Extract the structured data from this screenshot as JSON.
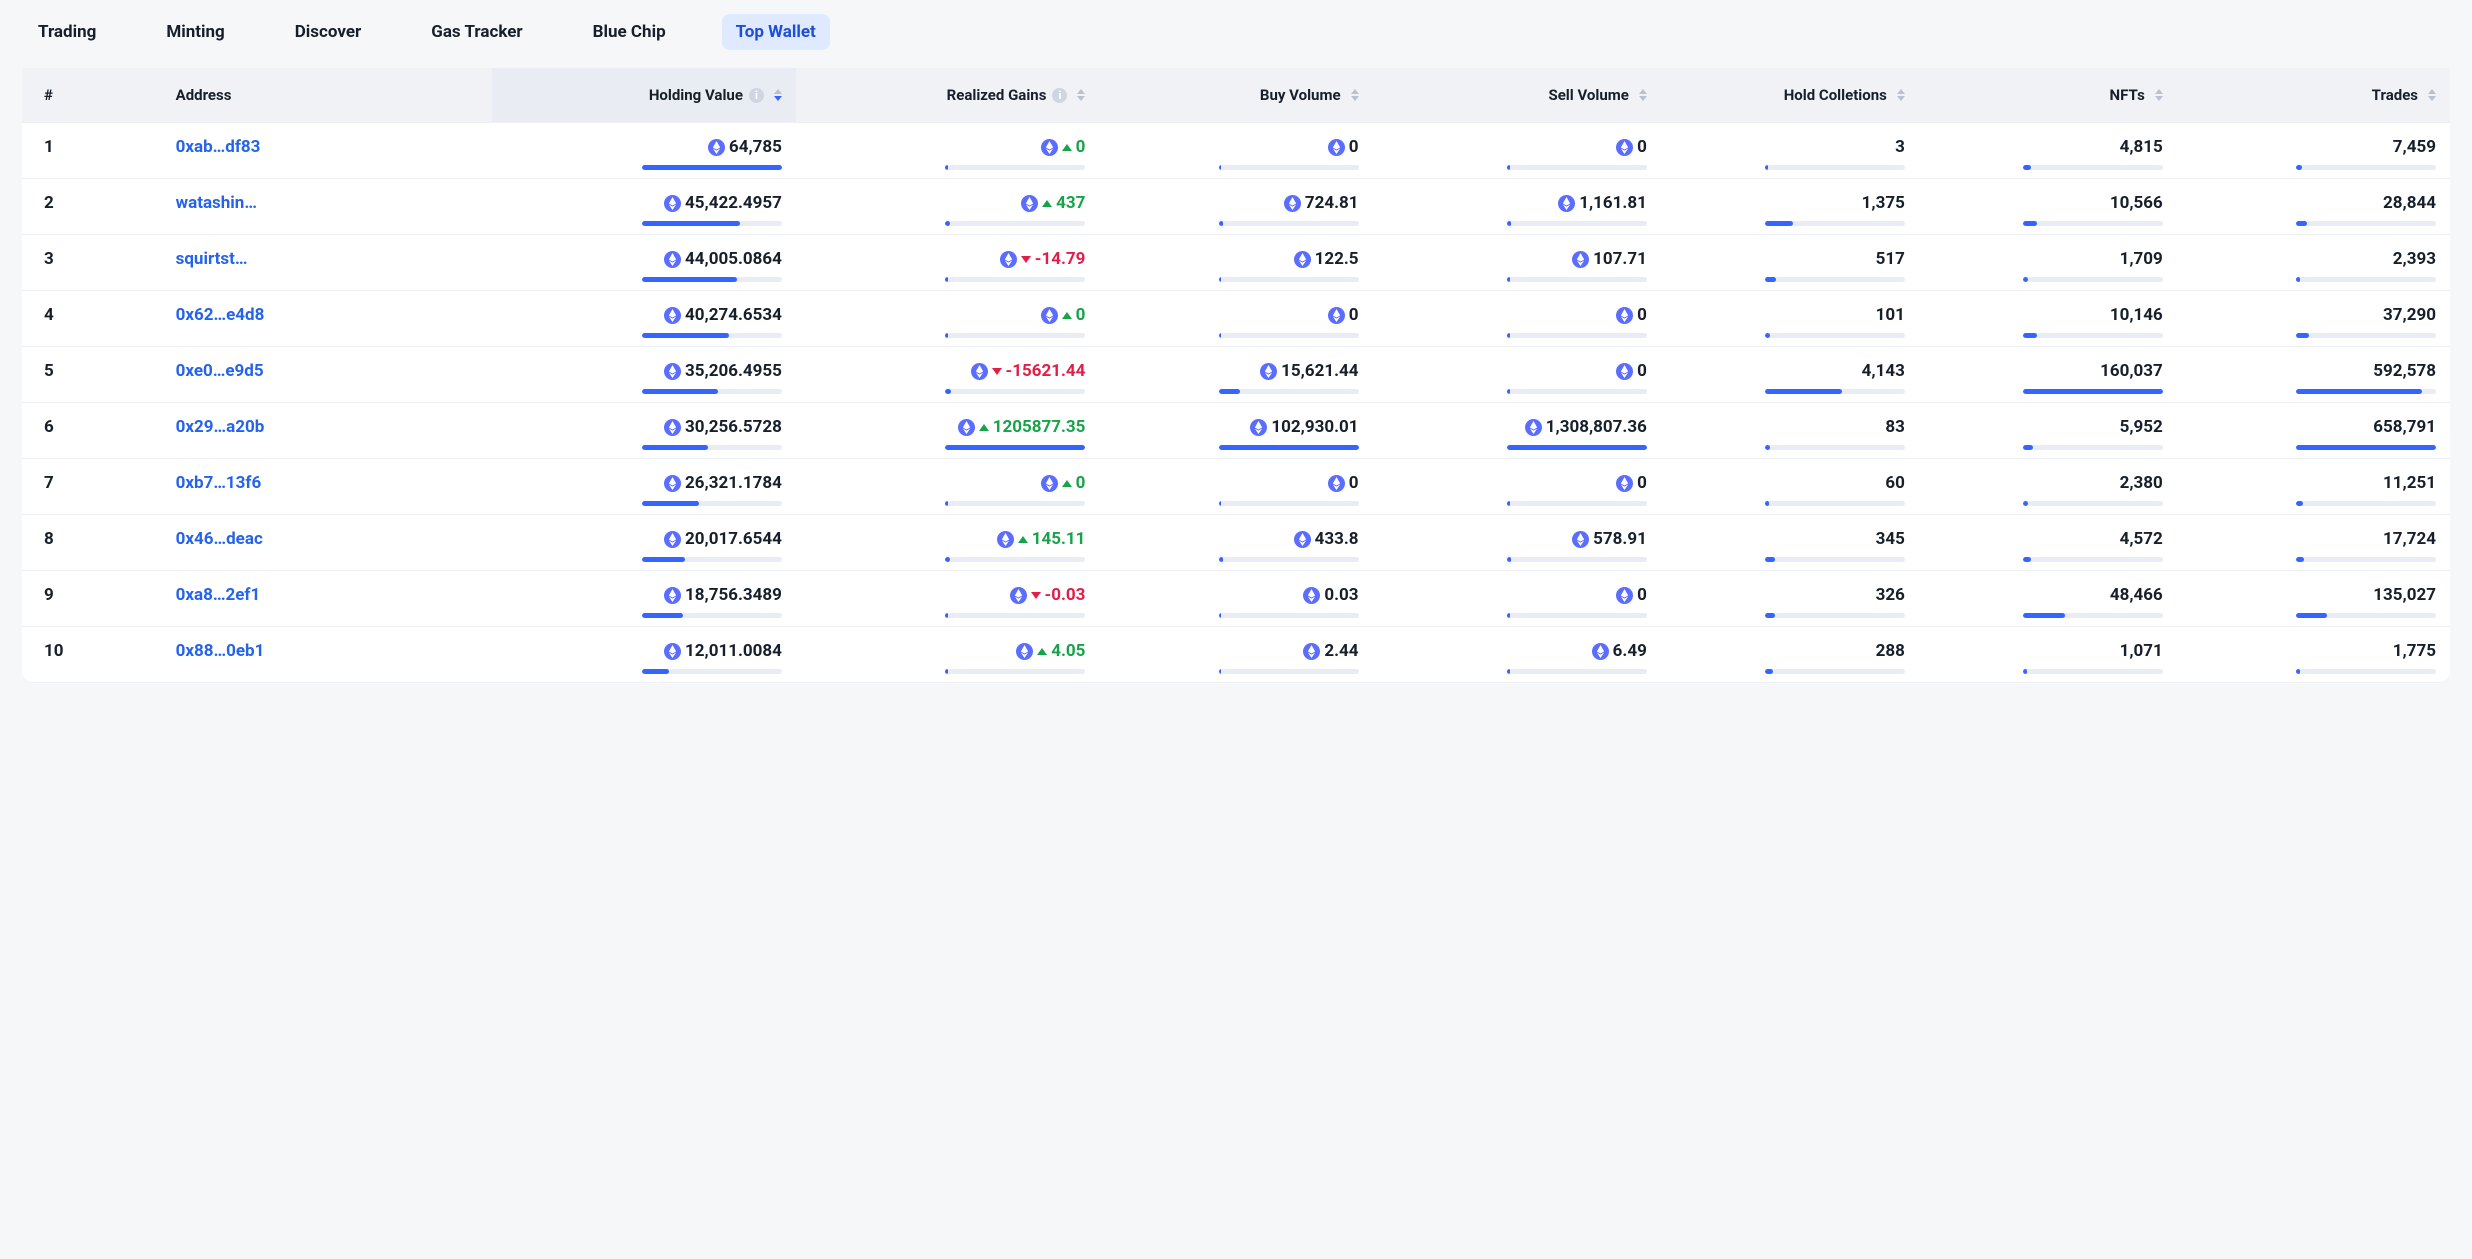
{
  "tabs": [
    {
      "label": "Trading",
      "active": false
    },
    {
      "label": "Minting",
      "active": false
    },
    {
      "label": "Discover",
      "active": false
    },
    {
      "label": "Gas Tracker",
      "active": false
    },
    {
      "label": "Blue Chip",
      "active": false
    },
    {
      "label": "Top Wallet",
      "active": true
    }
  ],
  "columns": [
    {
      "key": "rank",
      "label": "#",
      "align": "left",
      "sortable": false,
      "info": false,
      "eth": false,
      "active_sort": false
    },
    {
      "key": "address",
      "label": "Address",
      "align": "left",
      "sortable": false,
      "info": false,
      "eth": false,
      "active_sort": false
    },
    {
      "key": "holding_value",
      "label": "Holding Value",
      "align": "right",
      "sortable": true,
      "info": true,
      "eth": false,
      "active_sort": true
    },
    {
      "key": "realized_gains",
      "label": "Realized Gains",
      "align": "right",
      "sortable": true,
      "info": true,
      "eth": false,
      "active_sort": false
    },
    {
      "key": "buy_volume",
      "label": "Buy Volume",
      "align": "right",
      "sortable": true,
      "info": false,
      "eth": false,
      "active_sort": false
    },
    {
      "key": "sell_volume",
      "label": "Sell Volume",
      "align": "right",
      "sortable": true,
      "info": false,
      "eth": false,
      "active_sort": false
    },
    {
      "key": "hold_collections",
      "label": "Hold Colletions",
      "align": "right",
      "sortable": true,
      "info": false,
      "eth": false,
      "active_sort": false
    },
    {
      "key": "nfts",
      "label": "NFTs",
      "align": "right",
      "sortable": true,
      "info": false,
      "eth": false,
      "active_sort": false
    },
    {
      "key": "trades",
      "label": "Trades",
      "align": "right",
      "sortable": true,
      "info": false,
      "eth": false,
      "active_sort": false
    }
  ],
  "bar_color": "#3565ff",
  "bar_bg": "#e9ecf2",
  "eth_icon_color": "#5b6dff",
  "rows": [
    {
      "rank": "1",
      "address": "0xab…df83",
      "holding_value": "64,785",
      "hv_pct": 100,
      "gain": "0",
      "gain_dir": "up",
      "gain_pct": 2,
      "buy": "0",
      "buy_pct": 2,
      "sell": "0",
      "sell_pct": 2,
      "coll": "3",
      "coll_pct": 2,
      "nfts": "4,815",
      "nfts_pct": 6,
      "trades": "7,459",
      "trades_pct": 4
    },
    {
      "rank": "2",
      "address": "watashin…",
      "holding_value": "45,422.4957",
      "hv_pct": 70,
      "gain": "437",
      "gain_dir": "up",
      "gain_pct": 3,
      "buy": "724.81",
      "buy_pct": 3,
      "sell": "1,161.81",
      "sell_pct": 3,
      "coll": "1,375",
      "coll_pct": 20,
      "nfts": "10,566",
      "nfts_pct": 10,
      "trades": "28,844",
      "trades_pct": 8
    },
    {
      "rank": "3",
      "address": "squirtst…",
      "holding_value": "44,005.0864",
      "hv_pct": 68,
      "gain": "-14.79",
      "gain_dir": "down",
      "gain_pct": 2,
      "buy": "122.5",
      "buy_pct": 2,
      "sell": "107.71",
      "sell_pct": 2,
      "coll": "517",
      "coll_pct": 8,
      "nfts": "1,709",
      "nfts_pct": 4,
      "trades": "2,393",
      "trades_pct": 3
    },
    {
      "rank": "4",
      "address": "0x62…e4d8",
      "holding_value": "40,274.6534",
      "hv_pct": 62,
      "gain": "0",
      "gain_dir": "up",
      "gain_pct": 2,
      "buy": "0",
      "buy_pct": 2,
      "sell": "0",
      "sell_pct": 2,
      "coll": "101",
      "coll_pct": 4,
      "nfts": "10,146",
      "nfts_pct": 10,
      "trades": "37,290",
      "trades_pct": 9
    },
    {
      "rank": "5",
      "address": "0xe0…e9d5",
      "holding_value": "35,206.4955",
      "hv_pct": 54,
      "gain": "-15621.44",
      "gain_dir": "down",
      "gain_pct": 4,
      "buy": "15,621.44",
      "buy_pct": 15,
      "sell": "0",
      "sell_pct": 2,
      "coll": "4,143",
      "coll_pct": 55,
      "nfts": "160,037",
      "nfts_pct": 100,
      "trades": "592,578",
      "trades_pct": 90
    },
    {
      "rank": "6",
      "address": "0x29…a20b",
      "holding_value": "30,256.5728",
      "hv_pct": 47,
      "gain": "1205877.35",
      "gain_dir": "up",
      "gain_pct": 100,
      "buy": "102,930.01",
      "buy_pct": 100,
      "sell": "1,308,807.36",
      "sell_pct": 100,
      "coll": "83",
      "coll_pct": 4,
      "nfts": "5,952",
      "nfts_pct": 7,
      "trades": "658,791",
      "trades_pct": 100
    },
    {
      "rank": "7",
      "address": "0xb7…13f6",
      "holding_value": "26,321.1784",
      "hv_pct": 41,
      "gain": "0",
      "gain_dir": "up",
      "gain_pct": 2,
      "buy": "0",
      "buy_pct": 2,
      "sell": "0",
      "sell_pct": 2,
      "coll": "60",
      "coll_pct": 3,
      "nfts": "2,380",
      "nfts_pct": 4,
      "trades": "11,251",
      "trades_pct": 5
    },
    {
      "rank": "8",
      "address": "0x46…deac",
      "holding_value": "20,017.6544",
      "hv_pct": 31,
      "gain": "145.11",
      "gain_dir": "up",
      "gain_pct": 3,
      "buy": "433.8",
      "buy_pct": 3,
      "sell": "578.91",
      "sell_pct": 3,
      "coll": "345",
      "coll_pct": 7,
      "nfts": "4,572",
      "nfts_pct": 6,
      "trades": "17,724",
      "trades_pct": 6
    },
    {
      "rank": "9",
      "address": "0xa8…2ef1",
      "holding_value": "18,756.3489",
      "hv_pct": 29,
      "gain": "-0.03",
      "gain_dir": "down",
      "gain_pct": 2,
      "buy": "0.03",
      "buy_pct": 2,
      "sell": "0",
      "sell_pct": 2,
      "coll": "326",
      "coll_pct": 7,
      "nfts": "48,466",
      "nfts_pct": 30,
      "trades": "135,027",
      "trades_pct": 22
    },
    {
      "rank": "10",
      "address": "0x88…0eb1",
      "holding_value": "12,011.0084",
      "hv_pct": 19,
      "gain": "4.05",
      "gain_dir": "up",
      "gain_pct": 2,
      "buy": "2.44",
      "buy_pct": 2,
      "sell": "6.49",
      "sell_pct": 2,
      "coll": "288",
      "coll_pct": 6,
      "nfts": "1,071",
      "nfts_pct": 3,
      "trades": "1,775",
      "trades_pct": 3
    }
  ]
}
